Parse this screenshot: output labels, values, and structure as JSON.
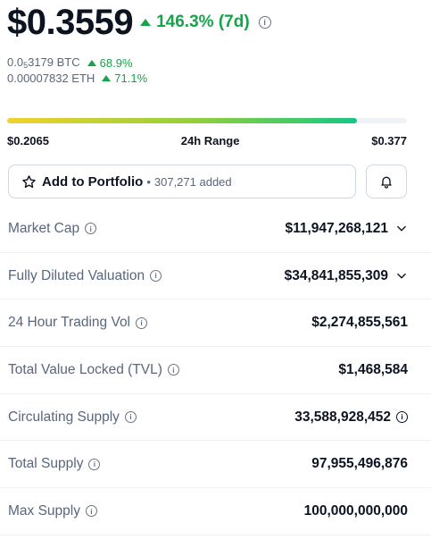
{
  "price": {
    "value": "$0.3559",
    "change_7d": "146.3% (7d)",
    "btc_value_prefix": "0.0",
    "btc_value_subscript": "5",
    "btc_value_rest": "3179 BTC",
    "btc_change": "68.9%",
    "eth_value": "0.00007832 ETH",
    "eth_change": "71.1%"
  },
  "range": {
    "low": "$0.2065",
    "label": "24h Range",
    "high": "$0.377",
    "position_fraction": 0.875
  },
  "portfolio": {
    "button_label": "Add to Portfolio",
    "added_count": "307,271 added"
  },
  "stats": [
    {
      "label": "Market Cap",
      "value": "$11,947,268,121"
    },
    {
      "label": "Fully Diluted Valuation",
      "value": "$34,841,855,309"
    },
    {
      "label": "24 Hour Trading Vol",
      "value": "$2,274,855,561"
    },
    {
      "label": "Total Value Locked (TVL)",
      "value": "$1,468,584"
    },
    {
      "label": "Circulating Supply",
      "value": "33,588,928,452"
    },
    {
      "label": "Total Supply",
      "value": "97,955,496,876"
    },
    {
      "label": "Max Supply",
      "value": "100,000,000,000"
    }
  ],
  "colors": {
    "positive": "#16a34a",
    "text_primary": "#0d1421",
    "text_secondary": "#58667e",
    "border": "#cfd6e4"
  },
  "icons": {
    "info": "info-icon",
    "change_up": "triangle-up-icon",
    "star": "star-icon",
    "bell": "bell-icon",
    "expand": "chevron-down-icon"
  }
}
